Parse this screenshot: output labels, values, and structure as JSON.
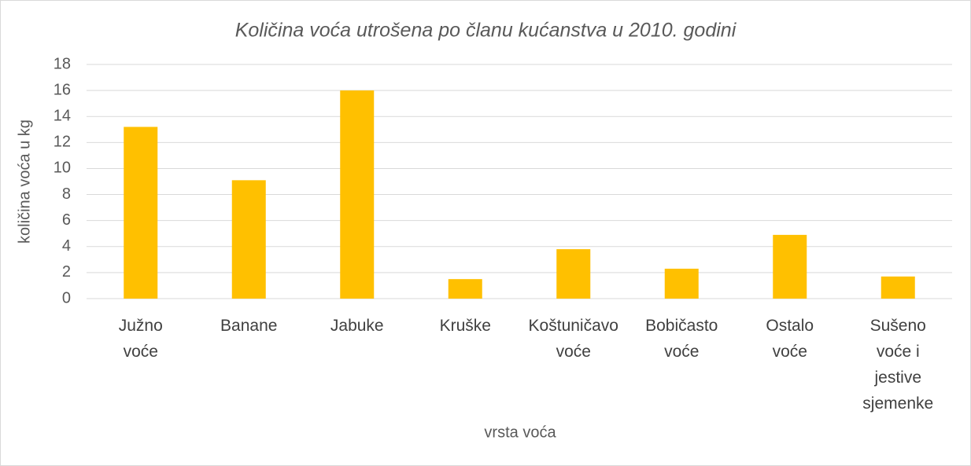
{
  "chart_data": {
    "type": "bar",
    "title": "Količina voća utrošena po članu kućanstva u 2010. godini",
    "x_label": "vrsta voća",
    "y_label": "količina voća u kg",
    "categories": [
      "Južno voće",
      "Banane",
      "Jabuke",
      "Kruške",
      "Koštuničavo voće",
      "Bobičasto voće",
      "Ostalo voće",
      "Sušeno voće i jestive sjemenke"
    ],
    "values": [
      13.2,
      9.1,
      16.0,
      1.5,
      3.8,
      2.3,
      4.9,
      1.7
    ],
    "color": "#ffc000",
    "ylim": [
      0,
      18
    ],
    "yticks": [
      0,
      2,
      4,
      6,
      8,
      10,
      12,
      14,
      16,
      18
    ],
    "grid": true
  }
}
